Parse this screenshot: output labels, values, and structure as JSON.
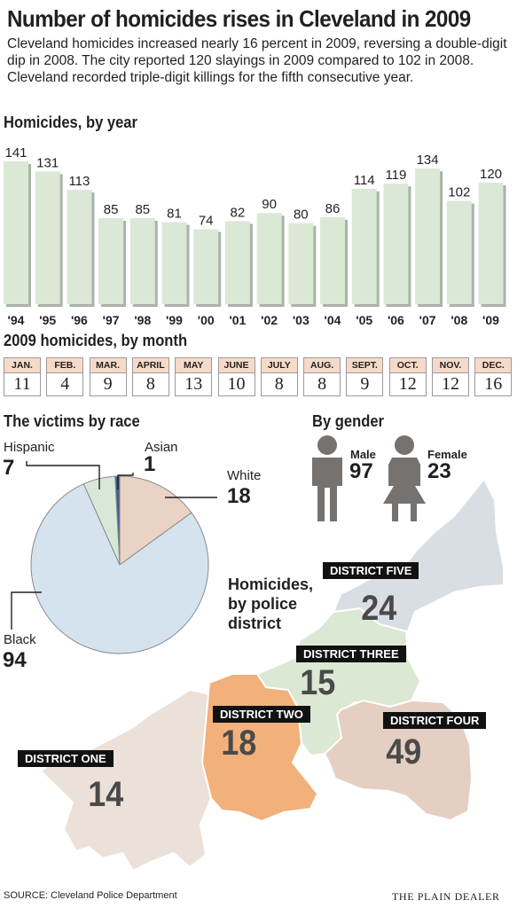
{
  "title": "Number of homicides rises in Cleveland in 2009",
  "subtitle": "Cleveland homicides increased nearly 16 percent in 2009, reversing a double-digit dip in 2008. The city reported 120 slayings in 2009 compared to 102 in 2008. Cleveland recorded triple-digit killings for the fifth consecutive year.",
  "colors": {
    "bar_fill": "#dce8d6",
    "bar_shadow": "#a9b4a6",
    "month_header": "#f7d9c8",
    "pie_black": "#d5e3ef",
    "pie_white": "#ead3c4",
    "pie_hispanic": "#d8e8d8",
    "pie_asian": "#3e5f8f",
    "figure": "#76726f",
    "district_one": "#ebe1d8",
    "district_two": "#f2b07a",
    "district_three": "#dbe8d3",
    "district_four": "#e5cfc3",
    "district_five": "#d8dee3"
  },
  "chart_data": [
    {
      "type": "bar",
      "title": "Homicides, by year",
      "categories": [
        "'94",
        "'95",
        "'96",
        "'97",
        "'98",
        "'99",
        "'00",
        "'01",
        "'02",
        "'03",
        "'04",
        "'05",
        "'06",
        "'07",
        "'08",
        "'09"
      ],
      "values": [
        141,
        131,
        113,
        85,
        85,
        81,
        74,
        82,
        90,
        80,
        86,
        114,
        119,
        134,
        102,
        120
      ],
      "ylim": [
        0,
        141
      ],
      "grid": false
    },
    {
      "type": "table",
      "title": "2009 homicides, by month",
      "categories": [
        "JAN.",
        "FEB.",
        "MAR.",
        "APRIL",
        "MAY",
        "JUNE",
        "JULY",
        "AUG.",
        "SEPT.",
        "OCT.",
        "NOV.",
        "DEC."
      ],
      "values": [
        11,
        4,
        9,
        8,
        13,
        10,
        8,
        8,
        9,
        12,
        12,
        16
      ]
    },
    {
      "type": "pie",
      "title": "The victims by race",
      "categories": [
        "Black",
        "White",
        "Hispanic",
        "Asian"
      ],
      "values": [
        94,
        18,
        7,
        1
      ]
    }
  ],
  "race": {
    "hispanic_label": "Hispanic",
    "hispanic_value": "7",
    "asian_label": "Asian",
    "asian_value": "1",
    "white_label": "White",
    "white_value": "18",
    "black_label": "Black",
    "black_value": "94"
  },
  "gender": {
    "title": "By gender",
    "male_label": "Male",
    "male_value": "97",
    "female_label": "Female",
    "female_value": "23"
  },
  "map": {
    "title_line1": "Homicides,",
    "title_line2": "by police",
    "title_line3": "district",
    "districts": [
      {
        "name": "DISTRICT ONE",
        "value": "14"
      },
      {
        "name": "DISTRICT TWO",
        "value": "18"
      },
      {
        "name": "DISTRICT THREE",
        "value": "15"
      },
      {
        "name": "DISTRICT FOUR",
        "value": "49"
      },
      {
        "name": "DISTRICT FIVE",
        "value": "24"
      }
    ]
  },
  "source": "SOURCE: Cleveland Police Department",
  "publisher": "THE PLAIN DEALER"
}
